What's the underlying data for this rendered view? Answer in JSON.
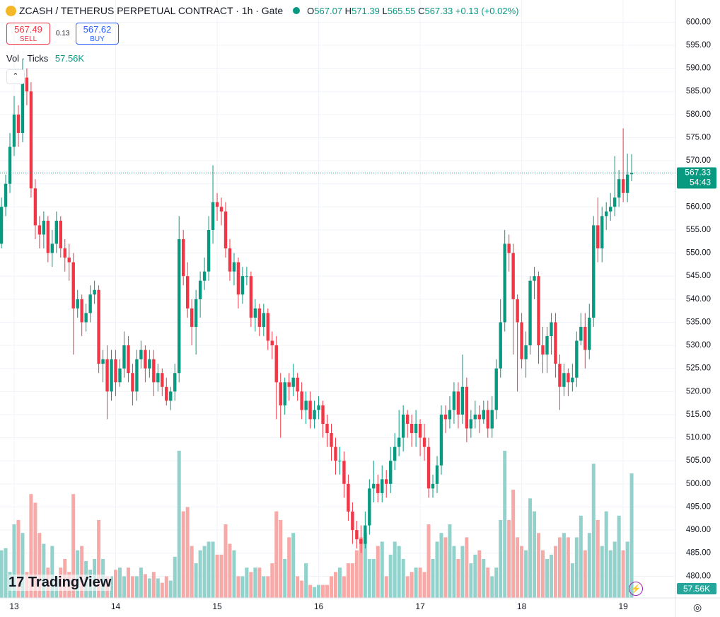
{
  "header": {
    "ohlc_labels": [
      "O",
      "H",
      "L",
      "C"
    ],
    "change": "+0.13 (+0.02%)",
    "sell_price": "567.49",
    "sell": "SELL",
    "spread": "0.13",
    "buy_price": "567.62",
    "buy": "BUY",
    "volume_title": "Vol · Ticks",
    "countdown": "54:43",
    "logo": "TradingView"
  },
  "chart_data": {
    "type": "candlestick",
    "title": "ZCASH / TETHERUS PERPETUAL CONTRACT · 1h · Gate",
    "up_color": "#089981",
    "down_color": "#f23645",
    "volume_up_color": "#92d2cc",
    "volume_down_color": "#f7a9a7",
    "ylim": [
      475.3,
      604.8
    ],
    "yticks": [
      {
        "value": 480,
        "label": "480.00"
      },
      {
        "value": 485,
        "label": "485.00"
      },
      {
        "value": 490,
        "label": "490.00"
      },
      {
        "value": 495,
        "label": "495.00"
      },
      {
        "value": 500,
        "label": "500.00"
      },
      {
        "value": 505,
        "label": "505.00"
      },
      {
        "value": 510,
        "label": "510.00"
      },
      {
        "value": 515,
        "label": "515.00"
      },
      {
        "value": 520,
        "label": "520.00"
      },
      {
        "value": 525,
        "label": "525.00"
      },
      {
        "value": 530,
        "label": "530.00"
      },
      {
        "value": 535,
        "label": "535.00"
      },
      {
        "value": 540,
        "label": "540.00"
      },
      {
        "value": 545,
        "label": "545.00"
      },
      {
        "value": 550,
        "label": "550.00"
      },
      {
        "value": 555,
        "label": "555.00"
      },
      {
        "value": 560,
        "label": "560.00"
      },
      {
        "value": 565,
        "label": "565.00"
      },
      {
        "value": 570,
        "label": "570.00"
      },
      {
        "value": 575,
        "label": "575.00"
      },
      {
        "value": 580,
        "label": "580.00"
      },
      {
        "value": 585,
        "label": "585.00"
      },
      {
        "value": 590,
        "label": "590.00"
      },
      {
        "value": 595,
        "label": "595.00"
      },
      {
        "value": 600,
        "label": "600.00"
      }
    ],
    "xticks": [
      {
        "value": 3,
        "label": "13"
      },
      {
        "value": 27,
        "label": "14"
      },
      {
        "value": 51,
        "label": "15"
      },
      {
        "value": 75,
        "label": "16"
      },
      {
        "value": 99,
        "label": "17"
      },
      {
        "value": 123,
        "label": "18"
      },
      {
        "value": 147,
        "label": "19"
      }
    ],
    "open": [
      552,
      560,
      565,
      573,
      580,
      576,
      588,
      585,
      564,
      556,
      554,
      557,
      550,
      552,
      557,
      551,
      549,
      548,
      538,
      540,
      535,
      537,
      541,
      542,
      526,
      527,
      520,
      527,
      522,
      525,
      530,
      524,
      520,
      527,
      529,
      525,
      527,
      522,
      524,
      521,
      518,
      520,
      524,
      553,
      545,
      538,
      534,
      540,
      544,
      546,
      555,
      561,
      560,
      559,
      551,
      546,
      548,
      541,
      545,
      545,
      536,
      538,
      534,
      537,
      531,
      530,
      522,
      517,
      522,
      521,
      523,
      520,
      516,
      518,
      514,
      516,
      517,
      513,
      511,
      508,
      505,
      505,
      500,
      494,
      490,
      488,
      487,
      491,
      499,
      500,
      498,
      501,
      500,
      505,
      508,
      510,
      515,
      513,
      511,
      513,
      510,
      508,
      499,
      500,
      504,
      515,
      514,
      516,
      520,
      515,
      521,
      512,
      514,
      515,
      514,
      516,
      512,
      516,
      525,
      535,
      552,
      550,
      540,
      535,
      527,
      530,
      544,
      545,
      530,
      528,
      532,
      535,
      526,
      521,
      524,
      522,
      523,
      531,
      534,
      529,
      536,
      556,
      551,
      558,
      559,
      560,
      562,
      566,
      563,
      567.07
    ],
    "high": [
      562,
      567,
      576,
      584,
      582,
      592,
      590,
      587,
      566,
      558,
      559,
      558,
      555,
      559,
      558,
      553,
      552,
      550,
      542,
      541,
      539,
      543,
      544,
      543,
      529,
      530,
      529,
      529,
      527,
      533,
      532,
      526,
      529,
      531,
      530,
      529,
      529,
      526,
      525,
      523,
      521,
      526,
      558,
      555,
      548,
      540,
      542,
      546,
      549,
      558,
      569,
      563,
      562,
      561,
      553,
      550,
      549,
      547,
      547,
      546,
      540,
      539,
      539,
      538,
      533,
      532,
      524,
      523,
      524,
      526,
      524,
      522,
      520,
      520,
      518,
      519,
      518,
      515,
      513,
      510,
      508,
      507,
      502,
      496,
      492,
      491,
      494,
      501,
      505,
      502,
      504,
      503,
      508,
      511,
      516,
      517,
      516,
      515,
      516,
      514,
      513,
      510,
      502,
      506,
      517,
      517,
      519,
      522,
      522,
      528,
      523,
      516,
      518,
      517,
      518,
      518,
      519,
      527,
      540,
      555,
      554,
      552,
      541,
      537,
      533,
      545,
      547,
      546,
      534,
      534,
      537,
      537,
      528,
      526,
      525,
      526,
      533,
      537,
      537,
      539,
      558,
      562,
      560,
      561,
      563,
      571,
      568,
      577,
      571.5,
      571.39
    ],
    "low": [
      551,
      558,
      563,
      571,
      573,
      574,
      582,
      562,
      553,
      551,
      551,
      548,
      547,
      550,
      549,
      546,
      544,
      528,
      536,
      532,
      533,
      535,
      539,
      524,
      522,
      514,
      518,
      519,
      521,
      523,
      522,
      517,
      518,
      525,
      522,
      523,
      519,
      520,
      519,
      517,
      516,
      518,
      522,
      543,
      536,
      530,
      528,
      536,
      542,
      544,
      552,
      557,
      556,
      549,
      544,
      543,
      538,
      539,
      543,
      534,
      533,
      532,
      532,
      529,
      527,
      514,
      510,
      515,
      518,
      519,
      518,
      514,
      513,
      512,
      512,
      514,
      510,
      508,
      505,
      502,
      502,
      497,
      492,
      487,
      486,
      485,
      486,
      489,
      496,
      496,
      496,
      497,
      498,
      503,
      506,
      507,
      510,
      508,
      508,
      506,
      505,
      497,
      497,
      498,
      502,
      511,
      512,
      513,
      512,
      513,
      509,
      510,
      512,
      511,
      513,
      510,
      510,
      514,
      523,
      533,
      546,
      528,
      520,
      525,
      523,
      528,
      540,
      526,
      524,
      524,
      528,
      523,
      516,
      519,
      519,
      520,
      521,
      530,
      525,
      527,
      534,
      548,
      548,
      555,
      557,
      558,
      560,
      561,
      561,
      565.55
    ],
    "close": [
      560,
      565,
      573,
      580,
      576,
      588,
      585,
      564,
      556,
      554,
      557,
      550,
      552,
      557,
      551,
      549,
      548,
      538,
      540,
      535,
      537,
      541,
      542,
      526,
      527,
      520,
      527,
      522,
      525,
      530,
      524,
      520,
      527,
      529,
      525,
      527,
      522,
      524,
      521,
      518,
      520,
      524,
      553,
      545,
      538,
      534,
      540,
      544,
      546,
      555,
      561,
      560,
      559,
      551,
      546,
      548,
      541,
      545,
      545,
      536,
      538,
      534,
      537,
      531,
      530,
      522,
      517,
      522,
      521,
      523,
      520,
      516,
      518,
      514,
      516,
      517,
      513,
      511,
      508,
      505,
      505,
      500,
      494,
      490,
      488,
      487,
      491,
      499,
      500,
      498,
      501,
      500,
      505,
      508,
      510,
      515,
      513,
      511,
      513,
      510,
      508,
      499,
      500,
      504,
      515,
      514,
      516,
      520,
      515,
      521,
      512,
      514,
      515,
      514,
      516,
      512,
      516,
      525,
      535,
      552,
      550,
      540,
      535,
      527,
      530,
      544,
      545,
      530,
      528,
      532,
      535,
      526,
      521,
      524,
      522,
      523,
      531,
      534,
      529,
      536,
      556,
      551,
      558,
      559,
      560,
      562,
      566,
      563,
      567,
      567.33
    ],
    "volume": [
      22000,
      23000,
      12000,
      34000,
      36000,
      30000,
      12000,
      48000,
      44000,
      30000,
      25000,
      14000,
      24000,
      10000,
      14000,
      18000,
      12000,
      48000,
      22000,
      24000,
      17000,
      13000,
      18000,
      36000,
      18000,
      10000,
      10000,
      13000,
      14000,
      10000,
      14000,
      10000,
      10000,
      14000,
      11000,
      9000,
      12000,
      9000,
      7000,
      10000,
      8000,
      19000,
      68000,
      40000,
      42000,
      24000,
      16000,
      22000,
      24000,
      26000,
      26000,
      20000,
      20000,
      34000,
      25000,
      22000,
      10000,
      10000,
      14000,
      12000,
      14000,
      14000,
      10000,
      10000,
      16000,
      40000,
      36000,
      18000,
      28000,
      30000,
      10000,
      8000,
      16000,
      6000,
      5000,
      6000,
      6000,
      6000,
      10000,
      12000,
      14000,
      10000,
      16000,
      16000,
      22000,
      28000,
      30000,
      18000,
      18000,
      24000,
      26000,
      10000,
      20000,
      26000,
      24000,
      18000,
      10000,
      12000,
      14000,
      14000,
      12000,
      34000,
      18000,
      26000,
      30000,
      28000,
      34000,
      24000,
      18000,
      24000,
      28000,
      16000,
      20000,
      22000,
      18000,
      14000,
      10000,
      14000,
      36000,
      68000,
      36000,
      50000,
      28000,
      24000,
      22000,
      46000,
      40000,
      30000,
      22000,
      18000,
      20000,
      24000,
      28000,
      30000,
      28000,
      16000,
      28000,
      38000,
      22000,
      30000,
      62000,
      36000,
      24000,
      40000,
      22000,
      26000,
      38000,
      22000,
      26000,
      57560
    ],
    "volume_last_label": "57.56K"
  }
}
